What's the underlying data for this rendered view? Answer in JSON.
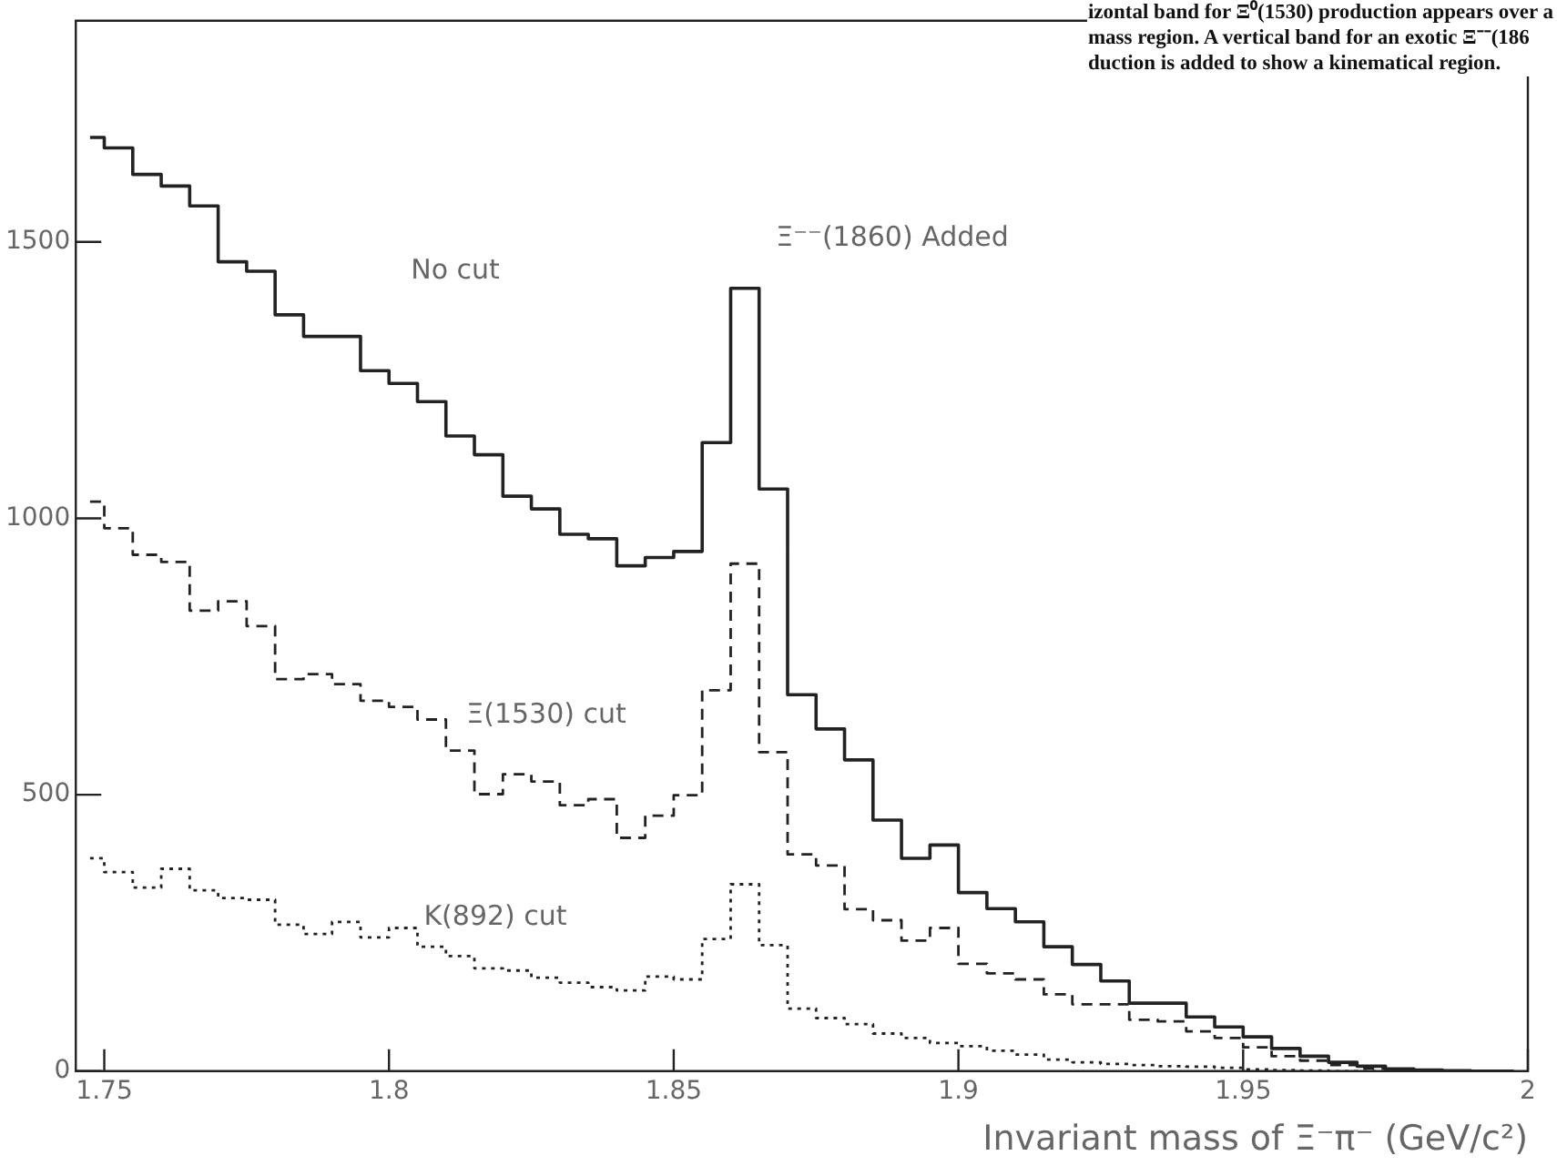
{
  "chart_data": {
    "type": "step",
    "xlabel": "Invariant mass of Ξ⁻π⁻ (GeV/c²)",
    "x": [
      1.7475,
      1.7525,
      1.7575,
      1.7625,
      1.7675,
      1.7725,
      1.7775,
      1.7825,
      1.7875,
      1.7925,
      1.7975,
      1.8025,
      1.8075,
      1.8125,
      1.8175,
      1.8225,
      1.8275,
      1.8325,
      1.8375,
      1.8425,
      1.8475,
      1.8525,
      1.8575,
      1.8625,
      1.8675,
      1.8725,
      1.8775,
      1.8825,
      1.8875,
      1.8925,
      1.8975,
      1.9025,
      1.9075,
      1.9125,
      1.9175,
      1.9225,
      1.9275,
      1.9325,
      1.9375,
      1.9425,
      1.9475,
      1.9525,
      1.9575,
      1.9625,
      1.9675,
      1.9725,
      1.9775,
      1.9825,
      1.9875,
      1.9925,
      1.9975
    ],
    "series": [
      {
        "name": "No cut",
        "color": "#222222",
        "line_style": "solid",
        "values": [
          1689,
          1670,
          1622,
          1601,
          1565,
          1464,
          1447,
          1368,
          1329,
          1329,
          1267,
          1244,
          1211,
          1149,
          1115,
          1040,
          1017,
          971,
          963,
          914,
          929,
          940,
          1137,
          1416,
          1053,
          681,
          619,
          563,
          454,
          385,
          409,
          323,
          294,
          270,
          225,
          193,
          163,
          123,
          123,
          98,
          80,
          62,
          41,
          27,
          16,
          9,
          4,
          2,
          1,
          0,
          0
        ]
      },
      {
        "name": "Ξ(1530) cut",
        "color": "#222222",
        "line_style": "dashed",
        "values": [
          1030,
          982,
          934,
          921,
          833,
          850,
          805,
          709,
          718,
          700,
          670,
          659,
          636,
          580,
          501,
          537,
          524,
          481,
          492,
          422,
          462,
          499,
          689,
          918,
          577,
          392,
          372,
          293,
          273,
          236,
          259,
          194,
          177,
          166,
          139,
          121,
          121,
          93,
          90,
          72,
          60,
          43,
          27,
          19,
          11,
          5,
          2,
          1,
          0,
          0,
          0
        ]
      },
      {
        "name": "K(892) cut",
        "color": "#222222",
        "line_style": "dotted",
        "values": [
          385,
          360,
          332,
          366,
          327,
          313,
          310,
          265,
          248,
          270,
          242,
          259,
          225,
          208,
          186,
          182,
          169,
          160,
          152,
          146,
          171,
          166,
          239,
          338,
          228,
          113,
          96,
          85,
          68,
          60,
          51,
          45,
          37,
          30,
          21,
          16,
          13,
          11,
          9,
          8,
          6,
          3,
          2,
          1,
          0,
          0,
          0,
          0,
          0,
          0,
          0
        ]
      }
    ],
    "xlim": [
      1.745,
      2.0
    ],
    "xticks": [
      1.75,
      1.8,
      1.85,
      1.9,
      1.95,
      2
    ],
    "ylim": [
      0,
      1900
    ],
    "yticks": [
      0,
      500,
      1000,
      1500
    ],
    "annotations": [
      "Ξ⁻⁻(1860) Added",
      "izontal band for Ξ⁰(1530) production appears over a",
      "mass region.  A vertical band for an exotic Ξ⁻⁻(186",
      "duction is added to show a kinematical region."
    ]
  }
}
